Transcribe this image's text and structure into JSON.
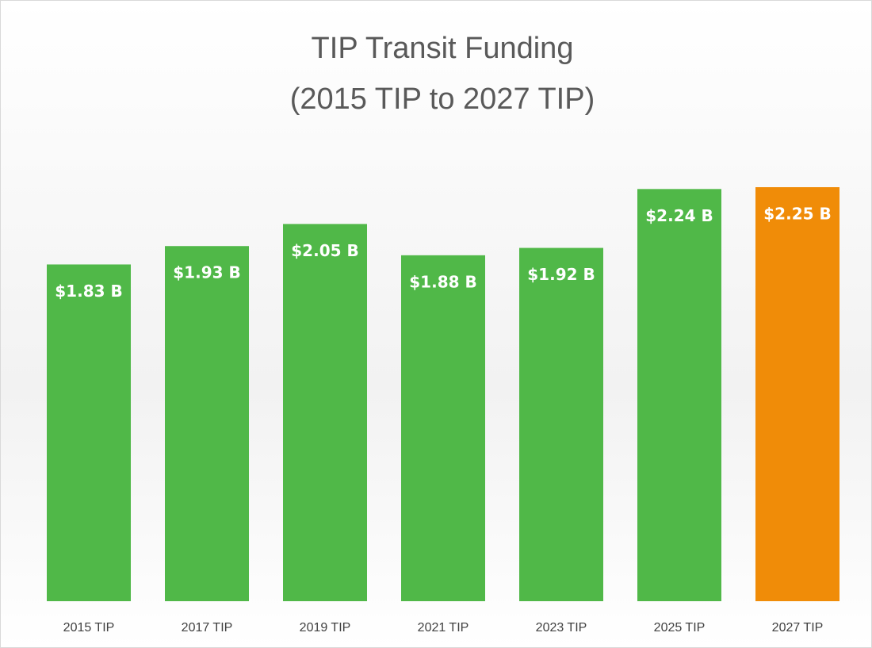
{
  "chart_data": {
    "type": "bar",
    "title": "TIP Transit Funding",
    "subtitle": "(2015 TIP to 2027 TIP)",
    "categories": [
      "2015 TIP",
      "2017 TIP",
      "2019 TIP",
      "2021 TIP",
      "2023 TIP",
      "2025 TIP",
      "2027 TIP"
    ],
    "values": [
      1.83,
      1.93,
      2.05,
      1.88,
      1.92,
      2.24,
      2.25
    ],
    "value_labels": [
      "$1.83 B",
      "$1.93 B",
      "$2.05 B",
      "$1.88 B",
      "$1.92 B",
      "$2.24 B",
      "$2.25 B"
    ],
    "colors": [
      "#50b848",
      "#50b848",
      "#50b848",
      "#50b848",
      "#50b848",
      "#50b848",
      "#f08c08"
    ]
  }
}
